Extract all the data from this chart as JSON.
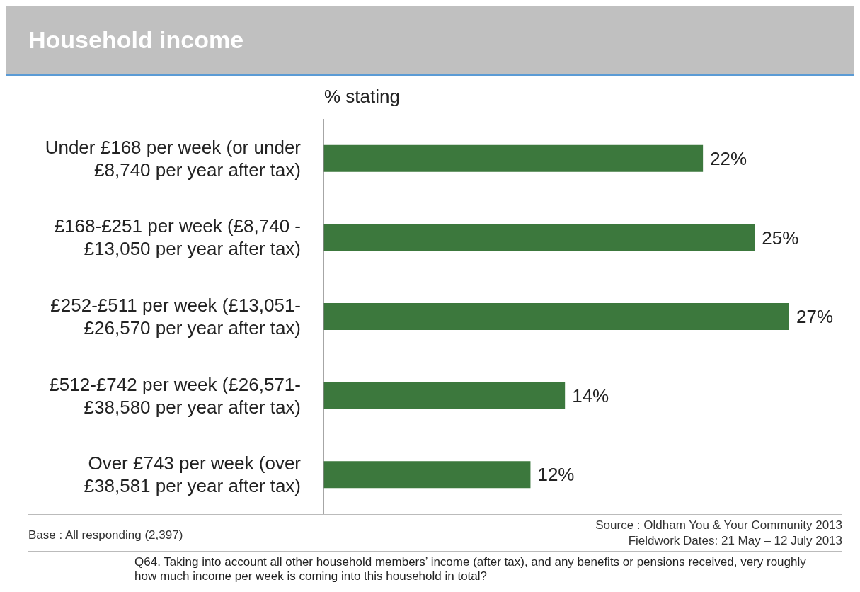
{
  "chart_data": {
    "type": "bar",
    "orientation": "horizontal",
    "title": "Household income",
    "xlabel": "% stating",
    "categories": [
      "Under £168 per week (or under £8,740 per year after tax)",
      "£168-£251 per week (£8,740 - £13,050 per year after tax)",
      "£252-£511 per week (£13,051-£26,570 per year after tax)",
      "£512-£742 per week (£26,571-£38,580 per year after tax)",
      "Over £743 per week (over £38,581 per year after tax)"
    ],
    "values": [
      22,
      25,
      27,
      14,
      12
    ],
    "value_labels": [
      "22%",
      "25%",
      "27%",
      "14%",
      "12%"
    ],
    "color": "#3c783d",
    "grid": false,
    "legend": false,
    "annotations": [
      "Base : All responding (2,397)",
      "Source : Oldham You & Your Community 2013",
      "Fieldwork Dates: 21 May – 12 July 2013",
      "Q64. Taking into account all other household members’ income (after tax), and any benefits or pensions received, very roughly how much income per week is coming into this household in total?"
    ]
  }
}
